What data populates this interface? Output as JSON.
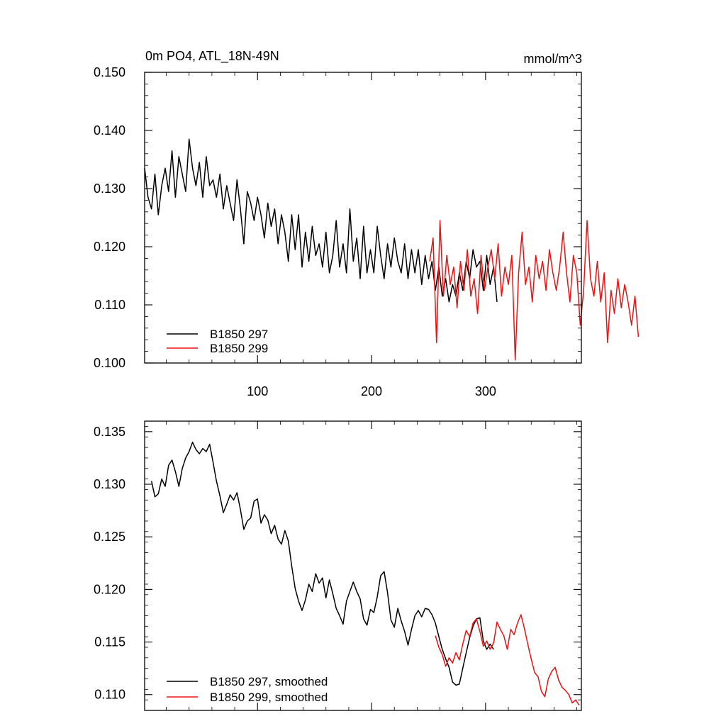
{
  "chart_data": [
    {
      "type": "line",
      "title": "0m PO4, ATL_18N-49N",
      "units": "mmol/m^3",
      "xlabel": "",
      "ylabel": "",
      "xlim": [
        1,
        384
      ],
      "ylim": [
        0.1,
        0.15
      ],
      "xticks": [
        100,
        200,
        300
      ],
      "xtick_labels": [
        "100",
        "200",
        "300"
      ],
      "yticks": [
        0.1,
        0.11,
        0.12,
        0.13,
        0.14,
        0.15
      ],
      "ytick_labels": [
        "0.100",
        "0.110",
        "0.120",
        "0.130",
        "0.140",
        "0.150"
      ],
      "legend_position": "bottom-left",
      "series": [
        {
          "name": "B1850 297",
          "color": "#000000",
          "x_start": 1,
          "x_step": 3,
          "values": [
            0.1335,
            0.1285,
            0.1265,
            0.1325,
            0.1255,
            0.1305,
            0.1335,
            0.1295,
            0.1365,
            0.1285,
            0.1355,
            0.1325,
            0.1295,
            0.1385,
            0.1335,
            0.1305,
            0.1345,
            0.1285,
            0.1355,
            0.1305,
            0.1315,
            0.1285,
            0.1325,
            0.1265,
            0.1305,
            0.1275,
            0.1245,
            0.1315,
            0.1265,
            0.1205,
            0.1295,
            0.1275,
            0.1245,
            0.1285,
            0.1255,
            0.1215,
            0.1275,
            0.1235,
            0.1265,
            0.1205,
            0.1255,
            0.1225,
            0.1175,
            0.1255,
            0.1195,
            0.1255,
            0.1165,
            0.1225,
            0.1175,
            0.1235,
            0.1185,
            0.1205,
            0.1165,
            0.1225,
            0.1155,
            0.1185,
            0.1245,
            0.1165,
            0.1205,
            0.1155,
            0.1265,
            0.1175,
            0.1215,
            0.1145,
            0.1235,
            0.1155,
            0.1195,
            0.1155,
            0.1235,
            0.1185,
            0.1145,
            0.1205,
            0.1165,
            0.1215,
            0.1175,
            0.1155,
            0.1205,
            0.1145,
            0.1195,
            0.1155,
            0.1195,
            0.1135,
            0.1185,
            0.1145,
            0.1175,
            0.1125,
            0.1165,
            0.1115,
            0.1145,
            0.1105,
            0.1135,
            0.1115,
            0.1155,
            0.1125,
            0.1175,
            0.1145,
            0.1195,
            0.1165,
            0.1175,
            0.1125,
            0.1185,
            0.1135,
            0.1165,
            0.1105
          ]
        },
        {
          "name": "B1850 299",
          "color": "#ee1111",
          "x_start": 251,
          "x_step": 3,
          "values": [
            0.1175,
            0.1215,
            0.1035,
            0.1245,
            0.1115,
            0.1185,
            0.1135,
            0.1165,
            0.1095,
            0.1175,
            0.1125,
            0.1195,
            0.1115,
            0.1145,
            0.1085,
            0.1185,
            0.1125,
            0.1165,
            0.1195,
            0.1145,
            0.1205,
            0.1115,
            0.1165,
            0.1135,
            0.1185,
            0.1005,
            0.1155,
            0.1225,
            0.1135,
            0.1165,
            0.1105,
            0.1185,
            0.1145,
            0.1175,
            0.1125,
            0.1195,
            0.1155,
            0.1125,
            0.1165,
            0.1225,
            0.1155,
            0.1105,
            0.1185,
            0.1155,
            0.1065,
            0.1125,
            0.1245,
            0.1145,
            0.1115,
            0.1175,
            0.1105,
            0.1155,
            0.1035,
            0.1125,
            0.1085,
            0.1145,
            0.1095,
            0.1135,
            0.1105,
            0.1065,
            0.1115,
            0.1045
          ]
        }
      ]
    },
    {
      "type": "line",
      "title": "",
      "xlabel": "",
      "ylabel": "",
      "xlim": [
        1,
        384
      ],
      "ylim": [
        0.1085,
        0.136
      ],
      "xticks": [
        100,
        200,
        300
      ],
      "yticks": [
        0.11,
        0.115,
        0.12,
        0.125,
        0.13,
        0.135
      ],
      "ytick_labels": [
        "0.110",
        "0.115",
        "0.120",
        "0.125",
        "0.130",
        "0.135"
      ],
      "legend_position": "bottom-left",
      "series": [
        {
          "name": "B1850 297, smoothed",
          "color": "#000000",
          "x": [
            7,
            10,
            13,
            16,
            19,
            22,
            25,
            28,
            31,
            34,
            37,
            40,
            43,
            46,
            49,
            52,
            55,
            58,
            61,
            64,
            67,
            70,
            73,
            76,
            79,
            82,
            85,
            88,
            91,
            94,
            97,
            100,
            103,
            106,
            109,
            112,
            115,
            118,
            121,
            124,
            127,
            130,
            133,
            136,
            139,
            142,
            145,
            148,
            151,
            154,
            157,
            160,
            163,
            166,
            169,
            172,
            175,
            178,
            181,
            184,
            187,
            190,
            193,
            196,
            199,
            202,
            205,
            208,
            211,
            214,
            217,
            220,
            223,
            226,
            229,
            232,
            235,
            238,
            241,
            244,
            247,
            250,
            253,
            256,
            259,
            262,
            265,
            268,
            271,
            274,
            277,
            280,
            283,
            286,
            289,
            292,
            295,
            298,
            301,
            304,
            307
          ],
          "values": [
            0.1303,
            0.1288,
            0.1291,
            0.1305,
            0.1298,
            0.1318,
            0.1323,
            0.1312,
            0.1298,
            0.1315,
            0.1325,
            0.1331,
            0.134,
            0.1333,
            0.1329,
            0.1334,
            0.1331,
            0.1338,
            0.1321,
            0.1303,
            0.1289,
            0.1273,
            0.1281,
            0.129,
            0.1285,
            0.1292,
            0.1276,
            0.1257,
            0.1265,
            0.1268,
            0.1284,
            0.1286,
            0.1263,
            0.1271,
            0.1266,
            0.1253,
            0.1261,
            0.1248,
            0.1243,
            0.1256,
            0.1246,
            0.1222,
            0.1201,
            0.1189,
            0.118,
            0.119,
            0.1205,
            0.1198,
            0.1215,
            0.1206,
            0.1211,
            0.1192,
            0.1209,
            0.1196,
            0.1182,
            0.1175,
            0.1167,
            0.1189,
            0.1198,
            0.1207,
            0.1198,
            0.1191,
            0.1172,
            0.1166,
            0.1181,
            0.1178,
            0.1193,
            0.1213,
            0.1217,
            0.1197,
            0.1171,
            0.1164,
            0.1182,
            0.117,
            0.116,
            0.1147,
            0.1162,
            0.1175,
            0.118,
            0.1174,
            0.1182,
            0.1181,
            0.1176,
            0.1168,
            0.1155,
            0.1143,
            0.1134,
            0.1126,
            0.1112,
            0.1109,
            0.111,
            0.1125,
            0.114,
            0.1154,
            0.1165,
            0.1172,
            0.1173,
            0.1151,
            0.1143,
            0.1148,
            0.1143
          ]
        },
        {
          "name": "B1850 299, smoothed",
          "color": "#ee1111",
          "x": [
            256,
            259,
            262,
            265,
            268,
            271,
            274,
            277,
            280,
            283,
            286,
            289,
            292,
            295,
            298,
            301,
            304,
            307,
            310,
            313,
            316,
            319,
            322,
            325,
            328,
            331,
            334,
            337,
            340,
            343,
            346,
            349,
            352,
            355,
            358,
            361,
            364,
            367,
            370,
            373,
            376,
            379,
            382
          ],
          "values": [
            0.1156,
            0.1145,
            0.1138,
            0.1127,
            0.1135,
            0.113,
            0.114,
            0.1133,
            0.1148,
            0.1161,
            0.1155,
            0.1168,
            0.1172,
            0.116,
            0.1146,
            0.1151,
            0.1143,
            0.1149,
            0.1169,
            0.1162,
            0.1156,
            0.1143,
            0.1162,
            0.1157,
            0.1168,
            0.1176,
            0.1163,
            0.1148,
            0.1134,
            0.1121,
            0.1117,
            0.1103,
            0.1098,
            0.1115,
            0.1122,
            0.1126,
            0.1114,
            0.1107,
            0.1104,
            0.11,
            0.1092,
            0.1095,
            0.109
          ]
        }
      ]
    }
  ]
}
